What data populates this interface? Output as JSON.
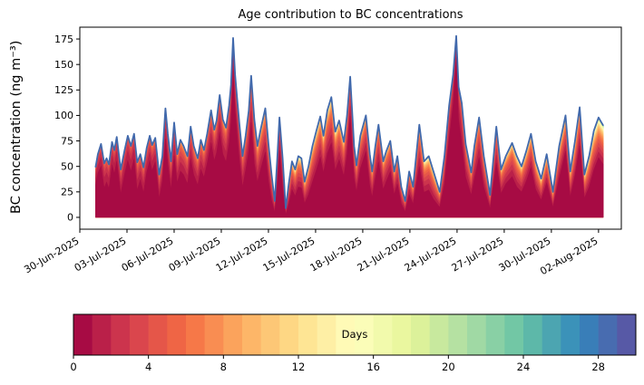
{
  "chart_data": {
    "type": "area",
    "subtype": "stacked-area-with-total-line",
    "title": "Age contribution to BC concentrations",
    "ylabel": "BC concentration (ng m⁻³)",
    "xlabel": "",
    "yticks": [
      0,
      25,
      50,
      75,
      100,
      125,
      150,
      175
    ],
    "ylim": [
      -11.6,
      186.6
    ],
    "xlim": [
      0,
      34.45
    ],
    "xticks": [
      {
        "day": 0,
        "label": "30-Jun-2025"
      },
      {
        "day": 3,
        "label": "03-Jul-2025"
      },
      {
        "day": 6,
        "label": "06-Jul-2025"
      },
      {
        "day": 9,
        "label": "09-Jul-2025"
      },
      {
        "day": 12,
        "label": "12-Jul-2025"
      },
      {
        "day": 15,
        "label": "15-Jul-2025"
      },
      {
        "day": 18,
        "label": "18-Jul-2025"
      },
      {
        "day": 21,
        "label": "21-Jul-2025"
      },
      {
        "day": 24,
        "label": "24-Jul-2025"
      },
      {
        "day": 27,
        "label": "27-Jul-2025"
      },
      {
        "day": 30,
        "label": "30-Jul-2025"
      },
      {
        "day": 33,
        "label": "02-Aug-2025"
      }
    ],
    "grid": false,
    "legend": "none",
    "total_line_color": "#4169ac",
    "n_age_bins": 30,
    "age_colormap": [
      "#a70b44",
      "#ba2049",
      "#cc344d",
      "#da464d",
      "#e55649",
      "#ef6545",
      "#f67848",
      "#f98d52",
      "#fba35c",
      "#fdb668",
      "#fdc776",
      "#fed784",
      "#fee594",
      "#feefa5",
      "#fffab6",
      "#fbfdb8",
      "#f2faac",
      "#eaf79f",
      "#dcf19a",
      "#c8e99e",
      "#b5e1a2",
      "#a0d9a4",
      "#89d0a5",
      "#72c7a5",
      "#5db8a9",
      "#4ca5b1",
      "#3b92b9",
      "#397eb8",
      "#486cb0",
      "#5759a6"
    ],
    "colorbar": {
      "label": "Days",
      "orientation": "horizontal",
      "vmin": 0,
      "vmax": 30,
      "ticks": [
        0,
        4,
        8,
        12,
        16,
        20,
        24,
        28
      ]
    },
    "samples_columns": [
      "days_since_30-Jun-2025",
      "total_BC_ng_m3",
      "aged_fraction_of_total",
      "mean_age_days_of_aged_part"
    ],
    "samples": [
      [
        1.0,
        49,
        0.35,
        2
      ],
      [
        1.15,
        62,
        0.3,
        2
      ],
      [
        1.35,
        72,
        0.3,
        2
      ],
      [
        1.55,
        53,
        0.45,
        2
      ],
      [
        1.7,
        58,
        0.4,
        2
      ],
      [
        1.85,
        52,
        0.45,
        2
      ],
      [
        2.05,
        74,
        0.3,
        2
      ],
      [
        2.2,
        66,
        0.35,
        2
      ],
      [
        2.35,
        79,
        0.3,
        2
      ],
      [
        2.6,
        47,
        0.5,
        2.5
      ],
      [
        2.85,
        66,
        0.35,
        2
      ],
      [
        3.05,
        80,
        0.3,
        2
      ],
      [
        3.25,
        70,
        0.35,
        2
      ],
      [
        3.45,
        82,
        0.3,
        2
      ],
      [
        3.65,
        54,
        0.5,
        2.5
      ],
      [
        3.85,
        62,
        0.4,
        2.5
      ],
      [
        4.05,
        49,
        0.5,
        2.5
      ],
      [
        4.25,
        68,
        0.35,
        2.5
      ],
      [
        4.45,
        80,
        0.3,
        2.5
      ],
      [
        4.6,
        71,
        0.35,
        2.5
      ],
      [
        4.8,
        78,
        0.3,
        2.5
      ],
      [
        5.05,
        42,
        0.55,
        3
      ],
      [
        5.25,
        60,
        0.4,
        3
      ],
      [
        5.45,
        107,
        0.28,
        2.5
      ],
      [
        5.6,
        82,
        0.35,
        2.5
      ],
      [
        5.8,
        55,
        0.5,
        3
      ],
      [
        6.0,
        93,
        0.35,
        2.5
      ],
      [
        6.2,
        62,
        0.45,
        3
      ],
      [
        6.4,
        76,
        0.4,
        3
      ],
      [
        6.6,
        70,
        0.4,
        3
      ],
      [
        6.85,
        60,
        0.45,
        3
      ],
      [
        7.05,
        89,
        0.35,
        3
      ],
      [
        7.25,
        70,
        0.4,
        3
      ],
      [
        7.5,
        58,
        0.45,
        3
      ],
      [
        7.7,
        76,
        0.38,
        3
      ],
      [
        7.9,
        66,
        0.4,
        3
      ],
      [
        8.1,
        82,
        0.35,
        3
      ],
      [
        8.35,
        105,
        0.3,
        3
      ],
      [
        8.55,
        86,
        0.35,
        3
      ],
      [
        8.7,
        95,
        0.33,
        3
      ],
      [
        8.9,
        120,
        0.3,
        3
      ],
      [
        9.1,
        96,
        0.35,
        3
      ],
      [
        9.3,
        88,
        0.38,
        3
      ],
      [
        9.5,
        110,
        0.33,
        3
      ],
      [
        9.62,
        130,
        0.28,
        2.5
      ],
      [
        9.75,
        176,
        0.18,
        2
      ],
      [
        9.88,
        140,
        0.25,
        2.5
      ],
      [
        10.0,
        118,
        0.3,
        2.5
      ],
      [
        10.15,
        92,
        0.38,
        3
      ],
      [
        10.35,
        60,
        0.5,
        3
      ],
      [
        10.55,
        80,
        0.42,
        3.5
      ],
      [
        10.75,
        105,
        0.38,
        3.5
      ],
      [
        10.9,
        139,
        0.33,
        3.5
      ],
      [
        11.1,
        96,
        0.45,
        4
      ],
      [
        11.3,
        70,
        0.5,
        4
      ],
      [
        11.5,
        86,
        0.45,
        4
      ],
      [
        11.8,
        107,
        0.4,
        4
      ],
      [
        12.0,
        72,
        0.5,
        4
      ],
      [
        12.2,
        42,
        0.6,
        4
      ],
      [
        12.4,
        16,
        0.68,
        4
      ],
      [
        12.55,
        55,
        0.45,
        3.5
      ],
      [
        12.7,
        98,
        0.33,
        3
      ],
      [
        12.9,
        58,
        0.5,
        3.5
      ],
      [
        13.1,
        9,
        0.7,
        4
      ],
      [
        13.3,
        34,
        0.6,
        4.5
      ],
      [
        13.5,
        55,
        0.5,
        4.5
      ],
      [
        13.7,
        47,
        0.55,
        5
      ],
      [
        13.9,
        60,
        0.5,
        5
      ],
      [
        14.1,
        58,
        0.5,
        5
      ],
      [
        14.3,
        35,
        0.6,
        5
      ],
      [
        14.55,
        50,
        0.55,
        5
      ],
      [
        14.8,
        70,
        0.5,
        5
      ],
      [
        15.05,
        85,
        0.45,
        5
      ],
      [
        15.3,
        99,
        0.4,
        5
      ],
      [
        15.5,
        80,
        0.45,
        5
      ],
      [
        15.75,
        105,
        0.4,
        5
      ],
      [
        16.0,
        118,
        0.38,
        5
      ],
      [
        16.25,
        84,
        0.45,
        5
      ],
      [
        16.5,
        95,
        0.4,
        4.5
      ],
      [
        16.8,
        74,
        0.45,
        4.5
      ],
      [
        17.0,
        100,
        0.38,
        4
      ],
      [
        17.2,
        138,
        0.28,
        3.5
      ],
      [
        17.45,
        70,
        0.45,
        4
      ],
      [
        17.6,
        51,
        0.5,
        4
      ],
      [
        17.85,
        80,
        0.4,
        4
      ],
      [
        18.2,
        100,
        0.35,
        4
      ],
      [
        18.45,
        62,
        0.5,
        4
      ],
      [
        18.6,
        45,
        0.55,
        4
      ],
      [
        18.8,
        70,
        0.45,
        4
      ],
      [
        19.0,
        91,
        0.4,
        4
      ],
      [
        19.3,
        55,
        0.5,
        4
      ],
      [
        19.5,
        65,
        0.45,
        4
      ],
      [
        19.75,
        75,
        0.4,
        4
      ],
      [
        20.0,
        45,
        0.5,
        4
      ],
      [
        20.2,
        60,
        0.45,
        4
      ],
      [
        20.45,
        30,
        0.55,
        4
      ],
      [
        20.7,
        16,
        0.65,
        4
      ],
      [
        20.95,
        45,
        0.5,
        4
      ],
      [
        21.2,
        30,
        0.55,
        4.5
      ],
      [
        21.6,
        91,
        0.45,
        4.5
      ],
      [
        21.9,
        55,
        0.55,
        5
      ],
      [
        22.2,
        60,
        0.55,
        5
      ],
      [
        22.5,
        45,
        0.6,
        5
      ],
      [
        22.9,
        25,
        0.6,
        5
      ],
      [
        23.2,
        60,
        0.45,
        4
      ],
      [
        23.5,
        110,
        0.3,
        3
      ],
      [
        23.75,
        140,
        0.2,
        2
      ],
      [
        23.95,
        178,
        0.12,
        1.5
      ],
      [
        24.1,
        128,
        0.25,
        2
      ],
      [
        24.3,
        112,
        0.35,
        3
      ],
      [
        24.55,
        72,
        0.45,
        3.5
      ],
      [
        24.9,
        44,
        0.5,
        4
      ],
      [
        25.1,
        70,
        0.45,
        4
      ],
      [
        25.4,
        98,
        0.4,
        4
      ],
      [
        25.7,
        60,
        0.5,
        4
      ],
      [
        26.1,
        22,
        0.6,
        4.5
      ],
      [
        26.5,
        89,
        0.4,
        4
      ],
      [
        26.8,
        47,
        0.5,
        4.5
      ],
      [
        27.1,
        60,
        0.45,
        4.5
      ],
      [
        27.5,
        73,
        0.45,
        4.5
      ],
      [
        27.8,
        60,
        0.5,
        5
      ],
      [
        28.1,
        50,
        0.5,
        5
      ],
      [
        28.4,
        65,
        0.45,
        5
      ],
      [
        28.7,
        82,
        0.4,
        5
      ],
      [
        29.0,
        55,
        0.5,
        5
      ],
      [
        29.35,
        38,
        0.55,
        5.5
      ],
      [
        29.7,
        62,
        0.45,
        5.5
      ],
      [
        30.1,
        25,
        0.6,
        5.5
      ],
      [
        30.5,
        70,
        0.45,
        5
      ],
      [
        30.9,
        100,
        0.35,
        5
      ],
      [
        31.2,
        45,
        0.55,
        5.5
      ],
      [
        31.5,
        75,
        0.45,
        5.5
      ],
      [
        31.8,
        108,
        0.35,
        5
      ],
      [
        32.1,
        42,
        0.55,
        6
      ],
      [
        32.4,
        60,
        0.5,
        6
      ],
      [
        32.7,
        85,
        0.45,
        6.5
      ],
      [
        33.0,
        98,
        0.4,
        6.5
      ],
      [
        33.3,
        90,
        0.42,
        6.5
      ]
    ]
  }
}
